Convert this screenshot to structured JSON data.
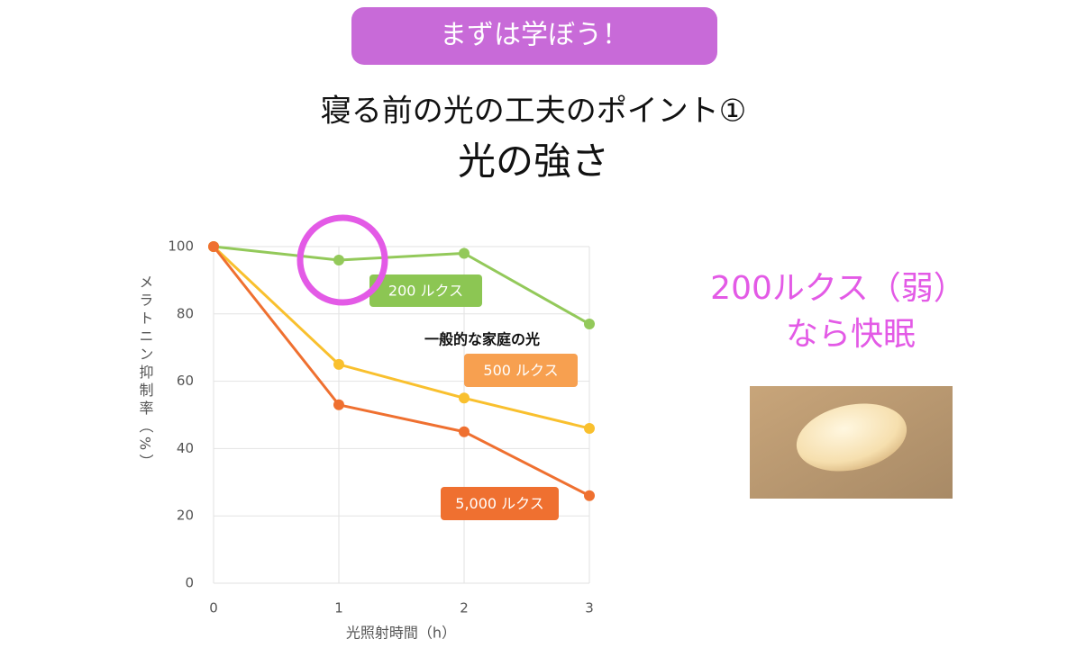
{
  "badge": "まずは学ぼう！",
  "title": [
    "寝る前の光の工夫のポイント①",
    "光の強さ"
  ],
  "note": [
    "200ルクス（弱）",
    "なら快眠"
  ],
  "chart_data": {
    "type": "line",
    "x_label": "光照射時間（h）",
    "y_label": "メラトニン抑制率（%）",
    "annotation": "一般的な家庭の光",
    "x": [
      0,
      1,
      2,
      3
    ],
    "xlim": [
      0,
      3
    ],
    "xticks": [
      0,
      1,
      2,
      3
    ],
    "ylim": [
      0,
      100
    ],
    "yticks": [
      0,
      20,
      40,
      60,
      80,
      100
    ],
    "grid": true,
    "series": [
      {
        "name": "200 ルクス",
        "color": "#93c95a",
        "label_color": "#8cc653",
        "values": [
          100,
          96,
          98,
          77
        ]
      },
      {
        "name": "500 ルクス",
        "color": "#f9c02e",
        "label_color": "#f7a050",
        "values": [
          100,
          65,
          55,
          46
        ]
      },
      {
        "name": "5,000 ルクス",
        "color": "#ef7030",
        "label_color": "#ef7030",
        "values": [
          100,
          53,
          45,
          26
        ]
      }
    ]
  }
}
